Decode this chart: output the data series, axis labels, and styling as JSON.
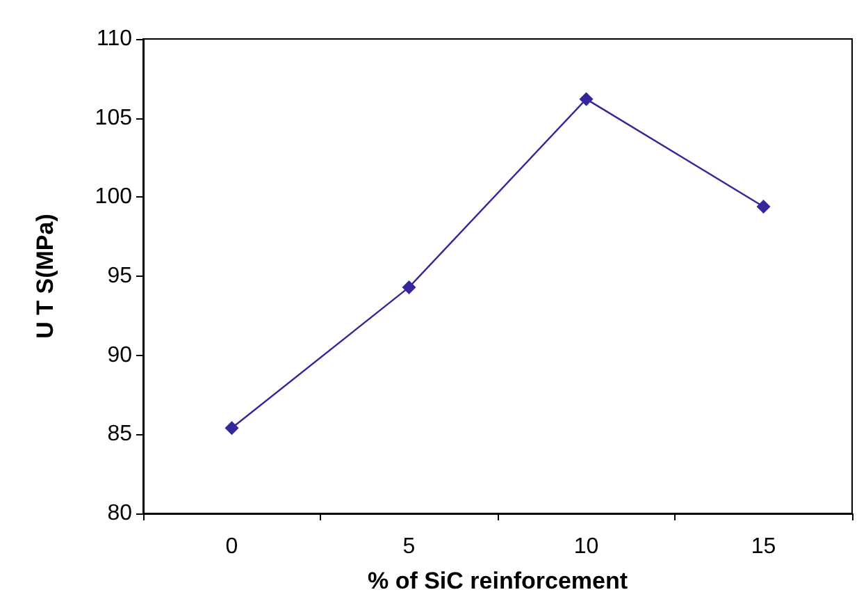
{
  "chart_data": {
    "type": "line",
    "xlabel": "% of SiC reinforcement",
    "ylabel": "U T S(MPa)",
    "categories": [
      "0",
      "5",
      "10",
      "15"
    ],
    "series": [
      {
        "color": "#33279a",
        "values": [
          85.4,
          94.3,
          106.2,
          99.4
        ]
      }
    ],
    "ylim": [
      80,
      110
    ],
    "yticks": [
      80,
      85,
      90,
      95,
      100,
      105,
      110
    ],
    "grid": false,
    "marker": "diamond",
    "line_style": "solid"
  }
}
